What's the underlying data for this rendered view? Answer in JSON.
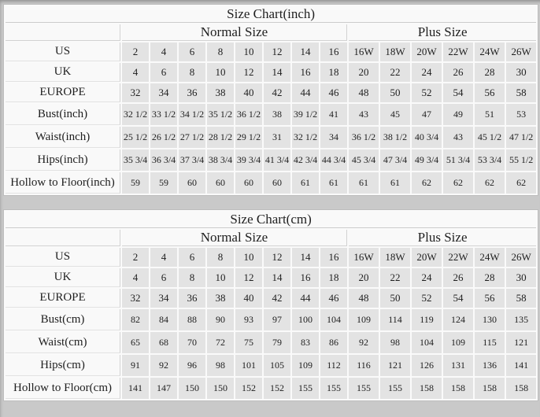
{
  "page": {
    "background_color": "#c9c9c9",
    "data_cell_color": "#e3e3e3",
    "label_cell_color": "#f9f9f9"
  },
  "tables": [
    {
      "title": "Size Chart(inch)",
      "group_headers": {
        "normal": "Normal Size",
        "plus": "Plus Size"
      },
      "rows": [
        {
          "label": "US",
          "values": [
            "2",
            "4",
            "6",
            "8",
            "10",
            "12",
            "14",
            "16",
            "16W",
            "18W",
            "20W",
            "22W",
            "24W",
            "26W"
          ]
        },
        {
          "label": "UK",
          "values": [
            "4",
            "6",
            "8",
            "10",
            "12",
            "14",
            "16",
            "18",
            "20",
            "22",
            "24",
            "26",
            "28",
            "30"
          ]
        },
        {
          "label": "EUROPE",
          "values": [
            "32",
            "34",
            "36",
            "38",
            "40",
            "42",
            "44",
            "46",
            "48",
            "50",
            "52",
            "54",
            "56",
            "58"
          ]
        },
        {
          "label": "Bust(inch)",
          "values": [
            "32 1/2",
            "33 1/2",
            "34 1/2",
            "35 1/2",
            "36 1/2",
            "38",
            "39 1/2",
            "41",
            "43",
            "45",
            "47",
            "49",
            "51",
            "53"
          ]
        },
        {
          "label": "Waist(inch)",
          "values": [
            "25 1/2",
            "26 1/2",
            "27 1/2",
            "28 1/2",
            "29 1/2",
            "31",
            "32 1/2",
            "34",
            "36 1/2",
            "38 1/2",
            "40 3/4",
            "43",
            "45 1/2",
            "47 1/2"
          ]
        },
        {
          "label": "Hips(inch)",
          "values": [
            "35 3/4",
            "36 3/4",
            "37 3/4",
            "38 3/4",
            "39 3/4",
            "41 3/4",
            "42 3/4",
            "44 3/4",
            "45 3/4",
            "47 3/4",
            "49 3/4",
            "51 3/4",
            "53 3/4",
            "55 1/2"
          ]
        },
        {
          "label": "Hollow to Floor(inch)",
          "values": [
            "59",
            "59",
            "60",
            "60",
            "60",
            "60",
            "61",
            "61",
            "61",
            "61",
            "62",
            "62",
            "62",
            "62"
          ]
        }
      ]
    },
    {
      "title": "Size Chart(cm)",
      "group_headers": {
        "normal": "Normal Size",
        "plus": "Plus Size"
      },
      "rows": [
        {
          "label": "US",
          "values": [
            "2",
            "4",
            "6",
            "8",
            "10",
            "12",
            "14",
            "16",
            "16W",
            "18W",
            "20W",
            "22W",
            "24W",
            "26W"
          ]
        },
        {
          "label": "UK",
          "values": [
            "4",
            "6",
            "8",
            "10",
            "12",
            "14",
            "16",
            "18",
            "20",
            "22",
            "24",
            "26",
            "28",
            "30"
          ]
        },
        {
          "label": "EUROPE",
          "values": [
            "32",
            "34",
            "36",
            "38",
            "40",
            "42",
            "44",
            "46",
            "48",
            "50",
            "52",
            "54",
            "56",
            "58"
          ]
        },
        {
          "label": "Bust(cm)",
          "values": [
            "82",
            "84",
            "88",
            "90",
            "93",
            "97",
            "100",
            "104",
            "109",
            "114",
            "119",
            "124",
            "130",
            "135"
          ]
        },
        {
          "label": "Waist(cm)",
          "values": [
            "65",
            "68",
            "70",
            "72",
            "75",
            "79",
            "83",
            "86",
            "92",
            "98",
            "104",
            "109",
            "115",
            "121"
          ]
        },
        {
          "label": "Hips(cm)",
          "values": [
            "91",
            "92",
            "96",
            "98",
            "101",
            "105",
            "109",
            "112",
            "116",
            "121",
            "126",
            "131",
            "136",
            "141"
          ]
        },
        {
          "label": "Hollow to Floor(cm)",
          "values": [
            "141",
            "147",
            "150",
            "150",
            "152",
            "152",
            "155",
            "155",
            "155",
            "155",
            "158",
            "158",
            "158",
            "158"
          ]
        }
      ]
    }
  ]
}
